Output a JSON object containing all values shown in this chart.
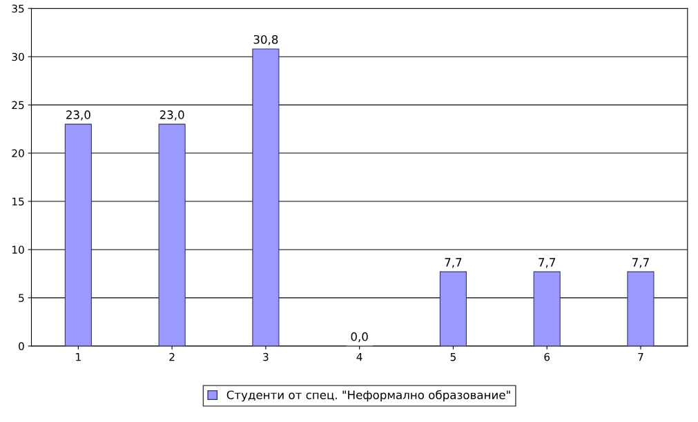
{
  "chart_data": {
    "type": "bar",
    "categories": [
      "1",
      "2",
      "3",
      "4",
      "5",
      "6",
      "7"
    ],
    "series": [
      {
        "name": "Студенти от спец. \"Неформално образование\"",
        "color": "#9999ff",
        "values": [
          23.0,
          23.0,
          30.8,
          0.0,
          7.7,
          7.7,
          7.7
        ],
        "value_labels": [
          "23,0",
          "23,0",
          "30,8",
          "0,0",
          "7,7",
          "7,7",
          "7,7"
        ]
      }
    ],
    "ylim": [
      0,
      35
    ],
    "yticks": [
      0,
      5,
      10,
      15,
      20,
      25,
      30,
      35
    ],
    "grid": "y",
    "legend": "bottom"
  }
}
